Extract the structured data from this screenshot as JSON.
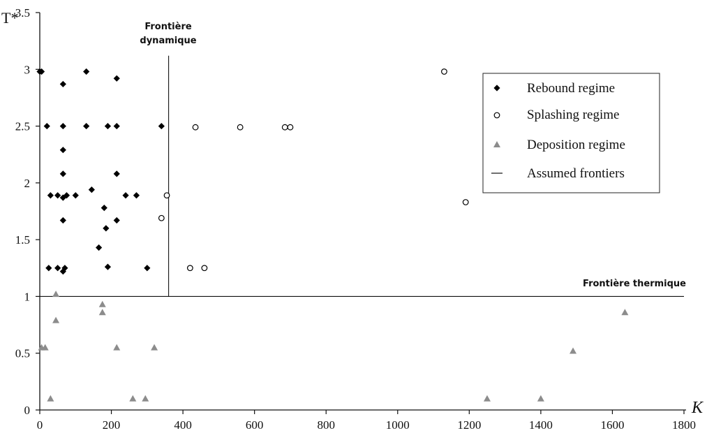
{
  "chart_data": {
    "type": "scatter",
    "xlabel": "K",
    "ylabel": "T*",
    "xlim": [
      0,
      1800
    ],
    "ylim": [
      0,
      3.5
    ],
    "x_ticks": [
      "0",
      "200",
      "400",
      "600",
      "800",
      "1000",
      "1200",
      "1400",
      "1600",
      "1800"
    ],
    "y_ticks": [
      "0",
      "0.5",
      "1",
      "1.5",
      "2",
      "2.5",
      "3",
      "3.5"
    ],
    "grid": false,
    "legend_position": "top-right",
    "series": [
      {
        "name": "Rebound regime",
        "marker": "diamond",
        "color": "#000000",
        "points": [
          [
            0,
            2.98
          ],
          [
            5,
            2.98
          ],
          [
            130,
            2.98
          ],
          [
            215,
            2.92
          ],
          [
            65,
            2.87
          ],
          [
            20,
            2.5
          ],
          [
            65,
            2.5
          ],
          [
            130,
            2.5
          ],
          [
            190,
            2.5
          ],
          [
            215,
            2.5
          ],
          [
            340,
            2.5
          ],
          [
            65,
            2.29
          ],
          [
            65,
            2.08
          ],
          [
            215,
            2.08
          ],
          [
            145,
            1.94
          ],
          [
            30,
            1.89
          ],
          [
            50,
            1.89
          ],
          [
            75,
            1.89
          ],
          [
            100,
            1.89
          ],
          [
            240,
            1.89
          ],
          [
            270,
            1.89
          ],
          [
            65,
            1.87
          ],
          [
            180,
            1.78
          ],
          [
            65,
            1.67
          ],
          [
            215,
            1.67
          ],
          [
            185,
            1.6
          ],
          [
            165,
            1.43
          ],
          [
            25,
            1.25
          ],
          [
            50,
            1.25
          ],
          [
            70,
            1.25
          ],
          [
            190,
            1.26
          ],
          [
            300,
            1.25
          ],
          [
            65,
            1.22
          ]
        ]
      },
      {
        "name": "Splashing regime",
        "marker": "circle",
        "color": "#000000",
        "points": [
          [
            435,
            2.49
          ],
          [
            560,
            2.49
          ],
          [
            685,
            2.49
          ],
          [
            700,
            2.49
          ],
          [
            1130,
            2.98
          ],
          [
            355,
            1.89
          ],
          [
            340,
            1.69
          ],
          [
            1190,
            1.83
          ],
          [
            420,
            1.25
          ],
          [
            460,
            1.25
          ]
        ]
      },
      {
        "name": "Deposition regime",
        "marker": "triangle",
        "color": "#8c8c8c",
        "points": [
          [
            45,
            1.02
          ],
          [
            175,
            0.93
          ],
          [
            175,
            0.86
          ],
          [
            45,
            0.79
          ],
          [
            5,
            0.55
          ],
          [
            15,
            0.55
          ],
          [
            215,
            0.55
          ],
          [
            320,
            0.55
          ],
          [
            30,
            0.1
          ],
          [
            260,
            0.1
          ],
          [
            295,
            0.1
          ],
          [
            1250,
            0.1
          ],
          [
            1400,
            0.1
          ],
          [
            1490,
            0.52
          ],
          [
            1635,
            0.86
          ]
        ]
      }
    ],
    "frontiers_legend_label": "Assumed frontiers",
    "frontiers": {
      "dynamic": {
        "x": 360,
        "y_from": 1.0,
        "y_to": 3.12,
        "label_line1": "Frontière",
        "label_line2": "dynamique"
      },
      "thermal": {
        "y": 1.0,
        "x_from": 0,
        "x_to": 1800,
        "label": "Frontière thermique"
      }
    }
  }
}
